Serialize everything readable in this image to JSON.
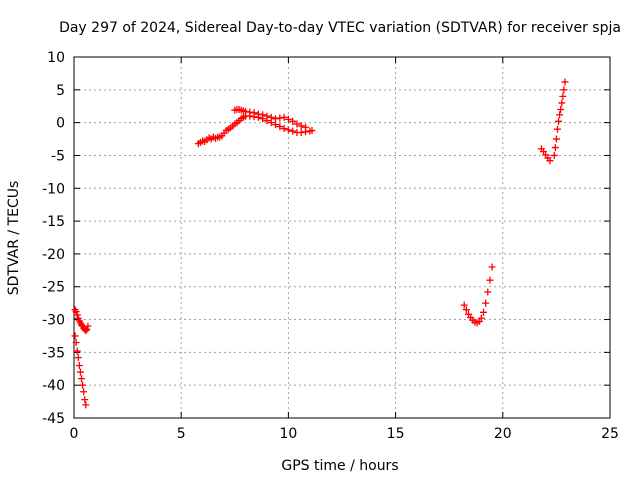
{
  "chart_data": {
    "type": "scatter",
    "title": "Day 297 of 2024, Sidereal Day-to-day VTEC variation (SDTVAR) for receiver spja",
    "xlabel": "GPS time / hours",
    "ylabel": "SDTVAR / TECUs",
    "xlim": [
      0,
      25
    ],
    "ylim": [
      -45,
      10
    ],
    "xticks": [
      0,
      5,
      10,
      15,
      20,
      25
    ],
    "yticks": [
      10,
      5,
      0,
      -5,
      -10,
      -15,
      -20,
      -25,
      -30,
      -35,
      -40,
      -45
    ],
    "grid": true,
    "marker": "plus",
    "color": "#ff0000",
    "segments": [
      {
        "x": [
          0.05,
          0.1,
          0.15,
          0.2,
          0.25,
          0.3,
          0.35,
          0.4,
          0.45,
          0.5,
          0.55,
          0.6,
          0.65
        ],
        "y": [
          -28.5,
          -28.8,
          -29.3,
          -29.8,
          -30.2,
          -30.5,
          -30.8,
          -31.0,
          -31.3,
          -31.5,
          -31.7,
          -31.5,
          -31.0
        ]
      },
      {
        "x": [
          0.05,
          0.1,
          0.15,
          0.2,
          0.25,
          0.3,
          0.35,
          0.4,
          0.45,
          0.5,
          0.55
        ],
        "y": [
          -32.5,
          -33.5,
          -34.8,
          -35.8,
          -37.0,
          -38.0,
          -39.0,
          -40.0,
          -41.0,
          -42.2,
          -43.0
        ]
      },
      {
        "x": [
          5.8,
          5.9,
          6.0,
          6.1,
          6.2,
          6.3,
          6.4,
          6.5,
          6.6,
          6.7
        ],
        "y": [
          -3.2,
          -3.0,
          -2.8,
          -2.9,
          -2.6,
          -2.3,
          -2.5,
          -2.2,
          -2.4,
          -2.2
        ]
      },
      {
        "x": [
          6.8,
          6.9,
          7.0,
          7.1,
          7.2,
          7.3,
          7.4,
          7.5,
          7.6,
          7.7,
          7.8,
          7.9,
          8.0,
          8.2,
          8.4,
          8.6,
          8.8,
          9.0,
          9.2,
          9.4,
          9.6,
          9.8,
          10.0,
          10.2,
          10.4,
          10.6,
          10.8,
          11.0,
          11.1
        ],
        "y": [
          -2.2,
          -2.0,
          -1.6,
          -1.2,
          -1.0,
          -0.8,
          -0.5,
          -0.2,
          0.0,
          0.3,
          0.6,
          0.8,
          1.0,
          1.0,
          0.9,
          0.8,
          0.6,
          0.3,
          0.0,
          -0.3,
          -0.6,
          -0.9,
          -1.1,
          -1.3,
          -1.5,
          -1.5,
          -1.4,
          -1.3,
          -1.2
        ]
      },
      {
        "x": [
          7.5,
          7.6,
          7.7,
          7.8,
          7.9,
          8.0,
          8.2,
          8.4,
          8.6,
          8.8,
          9.0,
          9.2,
          9.4,
          9.6,
          9.8,
          10.0,
          10.2,
          10.4,
          10.6,
          10.8
        ],
        "y": [
          1.9,
          2.0,
          2.0,
          1.9,
          1.8,
          1.7,
          1.6,
          1.5,
          1.3,
          1.2,
          1.0,
          0.8,
          0.6,
          0.7,
          0.8,
          0.5,
          0.2,
          -0.2,
          -0.5,
          -0.7
        ]
      },
      {
        "x": [
          18.2,
          18.3,
          18.4,
          18.5,
          18.6,
          18.7,
          18.8,
          18.9,
          19.0,
          19.1,
          19.2,
          19.3,
          19.4,
          19.5
        ],
        "y": [
          -27.8,
          -28.5,
          -29.2,
          -29.7,
          -30.1,
          -30.4,
          -30.5,
          -30.3,
          -29.8,
          -28.9,
          -27.5,
          -25.8,
          -24.0,
          -22.0
        ]
      },
      {
        "x": [
          21.8,
          21.9,
          22.0,
          22.1,
          22.2
        ],
        "y": [
          -4.0,
          -4.4,
          -4.9,
          -5.4,
          -5.8
        ]
      },
      {
        "x": [
          22.4,
          22.45,
          22.5,
          22.55,
          22.6,
          22.65,
          22.7,
          22.75,
          22.8,
          22.85,
          22.9
        ],
        "y": [
          -5.0,
          -3.8,
          -2.5,
          -1.0,
          0.2,
          1.2,
          2.0,
          3.0,
          4.0,
          5.0,
          6.2
        ]
      }
    ]
  }
}
